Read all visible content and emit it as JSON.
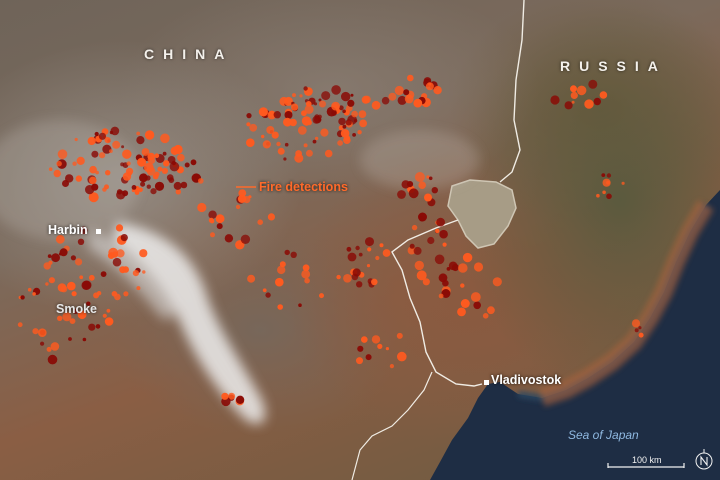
{
  "labels": {
    "china": "CHINA",
    "russia": "RUSSIA",
    "harbin": "Harbin",
    "smoke": "Smoke",
    "fire_detections": "Fire detections",
    "vladivostok": "Vladivostok",
    "sea_of_japan": "Sea of Japan",
    "scale": "100 km"
  },
  "icons": {
    "north_arrow": "north-arrow-icon",
    "city_marker": "square-marker-icon"
  },
  "colors": {
    "fire_outer": "#ff5a1f",
    "fire_inner": "#8a0a05",
    "smoke": "#e8e8e8",
    "sea": "#1f2f46",
    "border": "#f0ece4"
  }
}
